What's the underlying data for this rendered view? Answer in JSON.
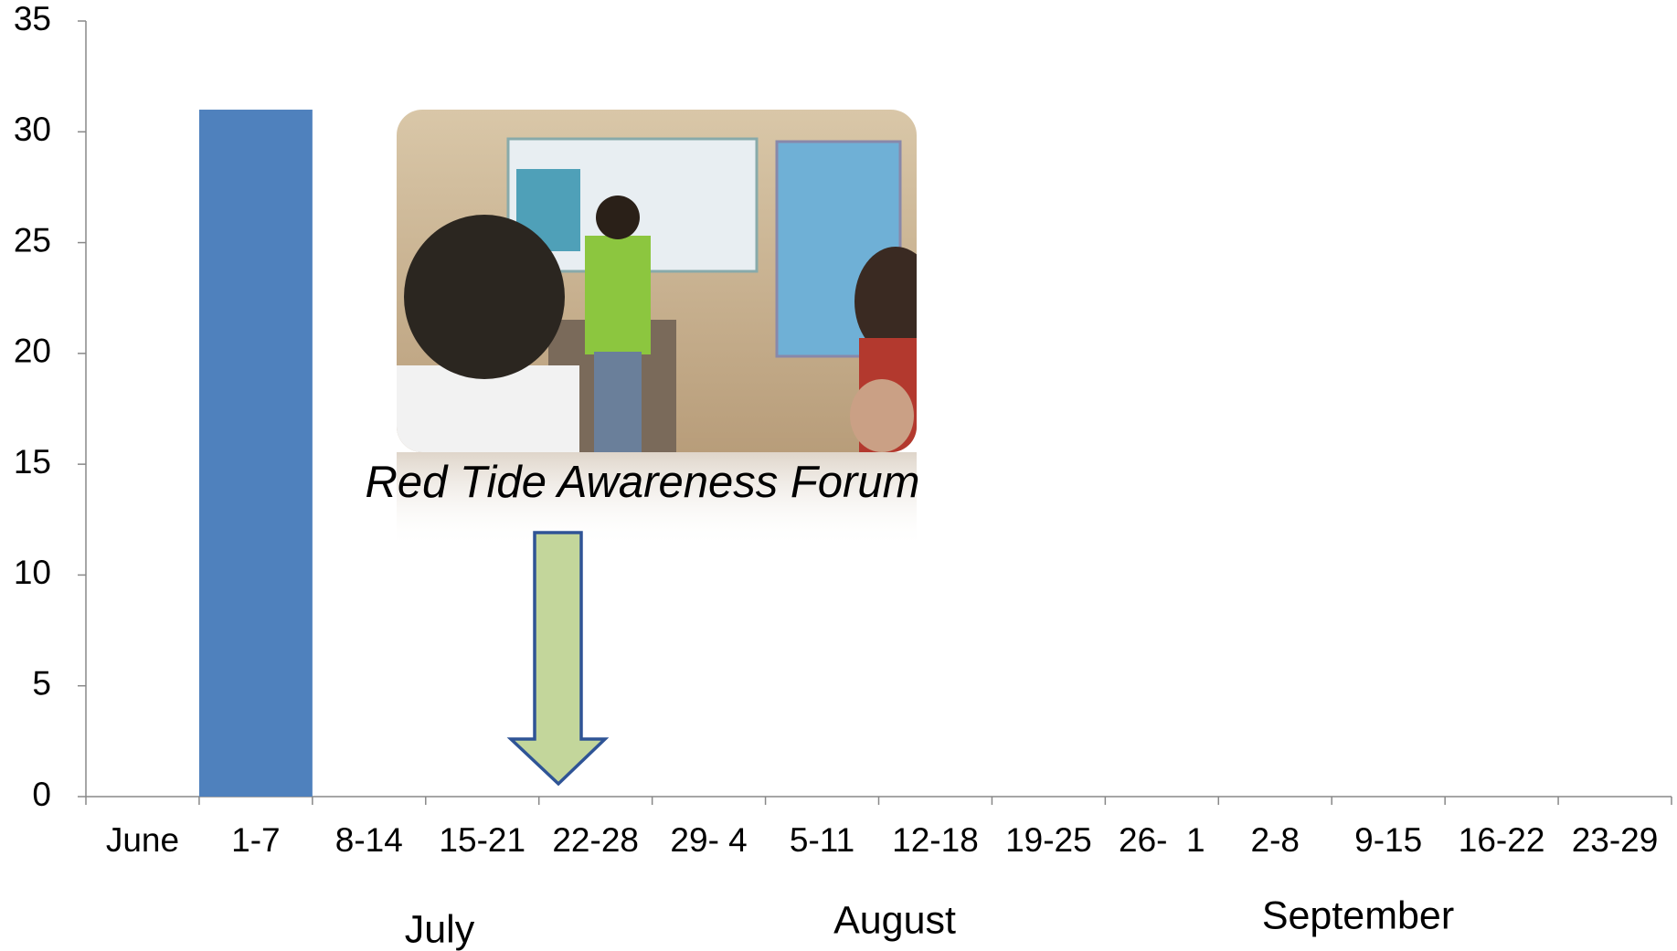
{
  "chart_data": {
    "type": "bar",
    "categories": [
      "June",
      "1-7",
      "8-14",
      "15-21",
      "22-28",
      "29- 4",
      "5-11",
      "12-18",
      "19-25",
      "26-  1",
      "2-8",
      "9-15",
      "16-22",
      "23-29"
    ],
    "values": [
      null,
      31,
      null,
      null,
      null,
      null,
      null,
      null,
      null,
      null,
      null,
      null,
      null,
      null
    ],
    "color": "#4f81bd",
    "ylim": [
      0,
      35
    ],
    "yticks": [
      0,
      5,
      10,
      15,
      20,
      25,
      30,
      35
    ],
    "group_labels": [
      "July",
      "August",
      "September"
    ],
    "annotation": "Red Tide Awareness Forum"
  }
}
